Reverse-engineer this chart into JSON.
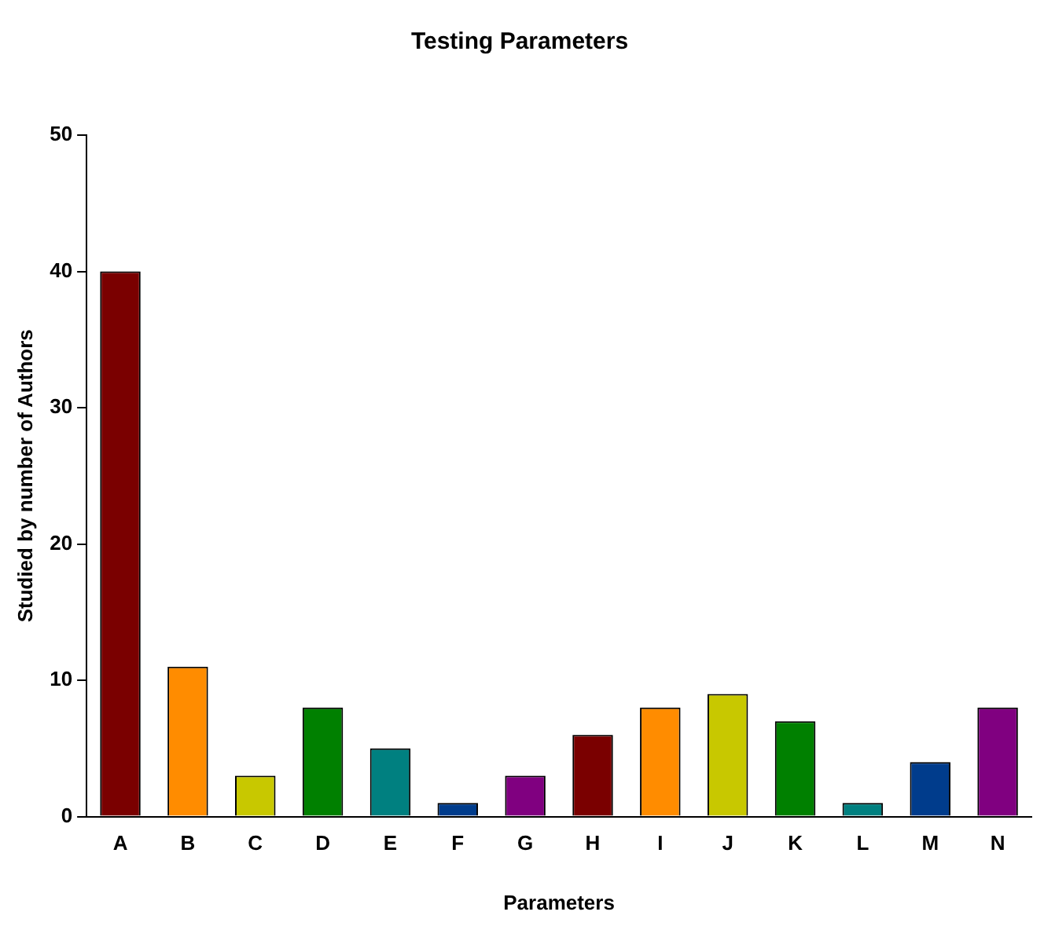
{
  "chart_data": {
    "type": "bar",
    "title": "Testing Parameters",
    "xlabel": "Parameters",
    "ylabel": "Studied by number of Authors",
    "categories": [
      "A",
      "B",
      "C",
      "D",
      "E",
      "F",
      "G",
      "H",
      "I",
      "J",
      "K",
      "L",
      "M",
      "N"
    ],
    "values": [
      40,
      11,
      3,
      8,
      5,
      1,
      3,
      6,
      8,
      9,
      7,
      1,
      4,
      8
    ],
    "colors": [
      "#7a0000",
      "#ff8c00",
      "#c8c800",
      "#008000",
      "#008080",
      "#003c8c",
      "#800080",
      "#7a0000",
      "#ff8c00",
      "#c8c800",
      "#008000",
      "#008080",
      "#003c8c",
      "#800080"
    ],
    "ylim": [
      0,
      50
    ],
    "yticks": [
      0,
      10,
      20,
      30,
      40,
      50
    ],
    "grid": false,
    "legend": false
  }
}
